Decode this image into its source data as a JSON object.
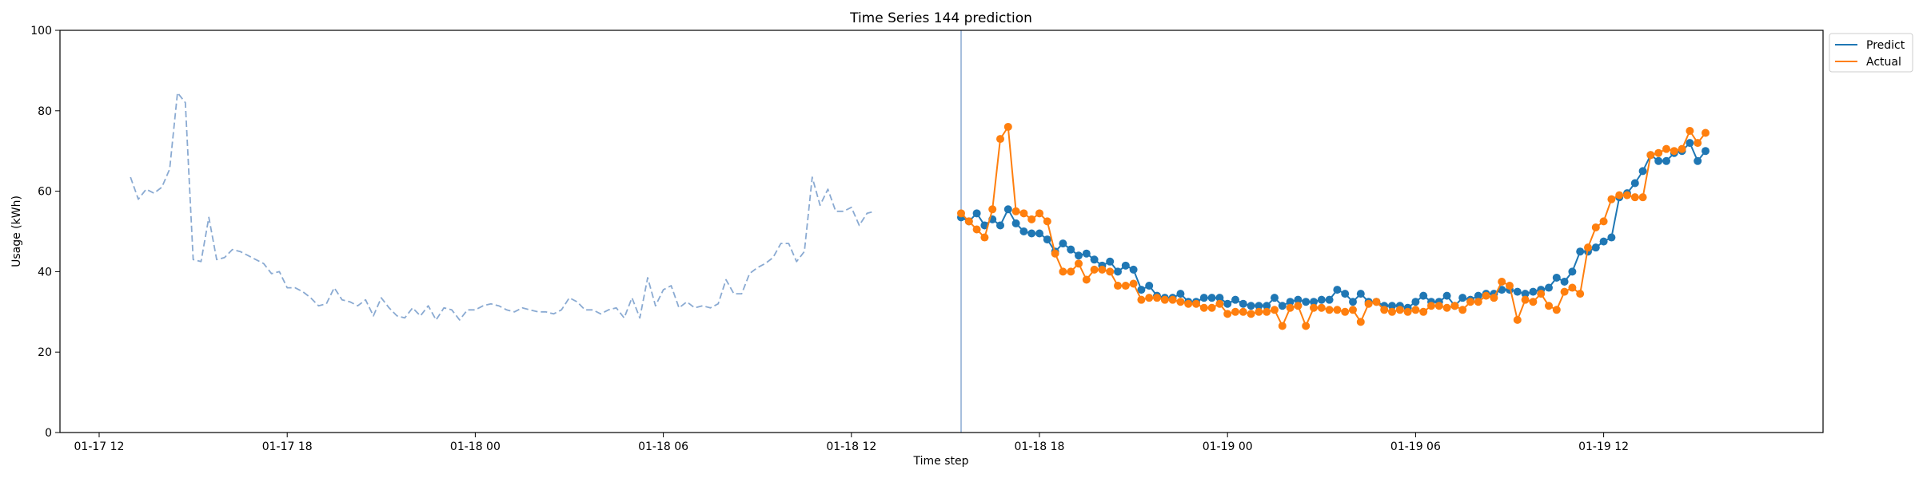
{
  "chart_data": {
    "type": "line",
    "title": "Time Series 144 prediction",
    "xlabel": "Time step",
    "ylabel": "Usage (kWh)",
    "ylim": [
      0,
      100
    ],
    "yticks": [
      0,
      20,
      40,
      60,
      80,
      100
    ],
    "x_unit": "15-minute steps from 2024-01-17 10:40",
    "xlim": [
      0,
      225
    ],
    "xticks": [
      {
        "value": 5,
        "label": "01-17 12"
      },
      {
        "value": 29,
        "label": "01-17 18"
      },
      {
        "value": 53,
        "label": "01-18 00"
      },
      {
        "value": 77,
        "label": "01-18 06"
      },
      {
        "value": 101,
        "label": "01-18 12"
      },
      {
        "value": 125,
        "label": "01-18 18"
      },
      {
        "value": 149,
        "label": "01-19 00"
      },
      {
        "value": 173,
        "label": "01-19 06"
      },
      {
        "value": 197,
        "label": "01-19 12"
      }
    ],
    "forecast_start": 115,
    "legend_position": "top-right, outside plot",
    "grid": false,
    "history": {
      "start": 9,
      "color": "#8aaad2",
      "values": [
        63.5,
        58,
        60.5,
        59.5,
        61,
        65.5,
        84.5,
        82,
        43,
        42.5,
        53.5,
        43,
        43.5,
        45.5,
        45,
        44,
        43,
        42,
        39.5,
        40,
        36,
        36,
        35,
        33.5,
        31.5,
        32,
        36,
        33,
        32.5,
        31.5,
        33,
        29,
        33.5,
        31,
        29,
        28.5,
        31,
        29,
        31.5,
        28,
        31,
        30.5,
        28,
        30.5,
        30.5,
        31.5,
        32,
        31.5,
        30.5,
        30,
        31,
        30.5,
        30,
        30,
        29.5,
        30.5,
        33.5,
        32.5,
        30.5,
        30.5,
        29.5,
        30.5,
        31,
        28.5,
        33.5,
        28.5,
        38.5,
        31.5,
        35.5,
        36.5,
        31,
        32.5,
        31,
        31.5,
        31,
        32,
        38,
        34.5,
        34.5,
        39.5,
        41,
        42,
        43.5,
        47,
        47,
        42.5,
        45,
        63.5,
        56.5,
        60.5,
        55,
        55,
        56,
        51.5,
        54.5,
        55
      ]
    },
    "series": [
      {
        "name": "Predict",
        "color": "#1f77b4",
        "start": 115,
        "values": [
          53.5,
          52.5,
          54.5,
          51.5,
          53,
          51.5,
          55.5,
          52,
          50,
          49.5,
          49.5,
          48,
          45,
          47,
          45.5,
          44,
          44.5,
          43,
          41.5,
          42.5,
          40,
          41.5,
          40.5,
          35.5,
          36.5,
          34,
          33.5,
          33.5,
          34.5,
          32.5,
          32.5,
          33.5,
          33.5,
          33.5,
          32,
          33,
          32,
          31.5,
          31.5,
          31.5,
          33.5,
          31.5,
          32.5,
          33,
          32.5,
          32.5,
          33,
          33,
          35.5,
          34.5,
          32.5,
          34.5,
          32.5,
          32.5,
          31.5,
          31.5,
          31.5,
          31,
          32.5,
          34,
          32.5,
          32.5,
          34,
          31.5,
          33.5,
          33,
          34,
          34.5,
          34.5,
          35.5,
          35.5,
          35,
          34.5,
          35,
          35.5,
          36,
          38.5,
          37.5,
          40,
          45,
          45,
          46,
          47.5,
          48.5,
          58.5,
          59.5,
          62,
          65,
          69,
          67.5,
          67.5,
          69.5,
          70,
          72,
          67.5,
          70
        ]
      },
      {
        "name": "Actual",
        "color": "#ff7f0e",
        "start": 115,
        "values": [
          54.5,
          52.5,
          50.5,
          48.5,
          55.5,
          73,
          76,
          55,
          54.5,
          53,
          54.5,
          52.5,
          44.5,
          40,
          40,
          42,
          38,
          40.5,
          40.5,
          40,
          36.5,
          36.5,
          37,
          33,
          33.5,
          33.5,
          33,
          33,
          32.5,
          32,
          32,
          31,
          31,
          32,
          29.5,
          30,
          30,
          29.5,
          30,
          30,
          30.5,
          26.5,
          31,
          31.5,
          26.5,
          31,
          31,
          30.5,
          30.5,
          30,
          30.5,
          27.5,
          32,
          32.5,
          30.5,
          30,
          30.5,
          30,
          30.5,
          30,
          31.5,
          31.5,
          31,
          31.5,
          30.5,
          32.5,
          32.5,
          34,
          33.5,
          37.5,
          36.5,
          28,
          33,
          32.5,
          34.5,
          31.5,
          30.5,
          35,
          36,
          34.5,
          46,
          51,
          52.5,
          58,
          59,
          59,
          58.5,
          58.5,
          69,
          69.5,
          70.5,
          70,
          70.5,
          75,
          72,
          74.5
        ]
      }
    ]
  }
}
